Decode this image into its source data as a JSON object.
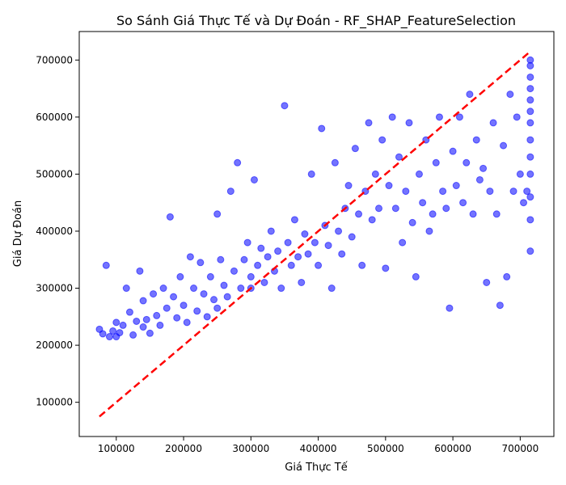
{
  "chart_data": {
    "type": "scatter",
    "title": "So Sánh Giá Thực Tế và Dự Đoán - RF_SHAP_FeatureSelection",
    "xlabel": "Giá Thực Tế",
    "ylabel": "Giá Dự Đoán",
    "xlim": [
      45000,
      750000
    ],
    "ylim": [
      40000,
      750000
    ],
    "xticks": [
      100000,
      200000,
      300000,
      400000,
      500000,
      600000,
      700000
    ],
    "yticks": [
      100000,
      200000,
      300000,
      400000,
      500000,
      600000,
      700000
    ],
    "xtick_labels": [
      "100000",
      "200000",
      "300000",
      "400000",
      "500000",
      "600000",
      "700000"
    ],
    "ytick_labels": [
      "100000",
      "200000",
      "300000",
      "400000",
      "500000",
      "600000",
      "700000"
    ],
    "grid": false,
    "colors": {
      "points": "#0000ff",
      "reference_line": "#ff0000"
    },
    "series": [
      {
        "kind": "scatter",
        "alpha": 0.55,
        "points": [
          [
            75000,
            228000
          ],
          [
            80000,
            220000
          ],
          [
            85000,
            340000
          ],
          [
            90000,
            215000
          ],
          [
            95000,
            225000
          ],
          [
            100000,
            240000
          ],
          [
            100000,
            215000
          ],
          [
            105000,
            222000
          ],
          [
            110000,
            235000
          ],
          [
            115000,
            300000
          ],
          [
            120000,
            258000
          ],
          [
            125000,
            218000
          ],
          [
            130000,
            242000
          ],
          [
            135000,
            330000
          ],
          [
            140000,
            278000
          ],
          [
            140000,
            232000
          ],
          [
            145000,
            245000
          ],
          [
            150000,
            221000
          ],
          [
            155000,
            290000
          ],
          [
            160000,
            252000
          ],
          [
            165000,
            235000
          ],
          [
            170000,
            300000
          ],
          [
            175000,
            265000
          ],
          [
            180000,
            425000
          ],
          [
            185000,
            285000
          ],
          [
            190000,
            248000
          ],
          [
            195000,
            320000
          ],
          [
            200000,
            270000
          ],
          [
            205000,
            240000
          ],
          [
            210000,
            355000
          ],
          [
            215000,
            300000
          ],
          [
            220000,
            260000
          ],
          [
            225000,
            345000
          ],
          [
            230000,
            290000
          ],
          [
            235000,
            250000
          ],
          [
            240000,
            320000
          ],
          [
            245000,
            280000
          ],
          [
            250000,
            430000
          ],
          [
            250000,
            265000
          ],
          [
            255000,
            350000
          ],
          [
            260000,
            305000
          ],
          [
            265000,
            285000
          ],
          [
            270000,
            470000
          ],
          [
            275000,
            330000
          ],
          [
            280000,
            520000
          ],
          [
            285000,
            300000
          ],
          [
            290000,
            350000
          ],
          [
            295000,
            380000
          ],
          [
            300000,
            320000
          ],
          [
            300000,
            300000
          ],
          [
            305000,
            490000
          ],
          [
            310000,
            340000
          ],
          [
            315000,
            370000
          ],
          [
            320000,
            310000
          ],
          [
            325000,
            355000
          ],
          [
            330000,
            400000
          ],
          [
            335000,
            330000
          ],
          [
            340000,
            365000
          ],
          [
            345000,
            300000
          ],
          [
            350000,
            620000
          ],
          [
            355000,
            380000
          ],
          [
            360000,
            340000
          ],
          [
            365000,
            420000
          ],
          [
            370000,
            355000
          ],
          [
            375000,
            310000
          ],
          [
            380000,
            395000
          ],
          [
            385000,
            360000
          ],
          [
            390000,
            500000
          ],
          [
            395000,
            380000
          ],
          [
            400000,
            340000
          ],
          [
            405000,
            580000
          ],
          [
            410000,
            410000
          ],
          [
            415000,
            375000
          ],
          [
            420000,
            300000
          ],
          [
            425000,
            520000
          ],
          [
            430000,
            400000
          ],
          [
            435000,
            360000
          ],
          [
            440000,
            440000
          ],
          [
            445000,
            480000
          ],
          [
            450000,
            390000
          ],
          [
            455000,
            545000
          ],
          [
            460000,
            430000
          ],
          [
            465000,
            340000
          ],
          [
            470000,
            470000
          ],
          [
            475000,
            590000
          ],
          [
            480000,
            420000
          ],
          [
            485000,
            500000
          ],
          [
            490000,
            440000
          ],
          [
            495000,
            560000
          ],
          [
            500000,
            335000
          ],
          [
            505000,
            480000
          ],
          [
            510000,
            600000
          ],
          [
            515000,
            440000
          ],
          [
            520000,
            530000
          ],
          [
            525000,
            380000
          ],
          [
            530000,
            470000
          ],
          [
            535000,
            590000
          ],
          [
            540000,
            415000
          ],
          [
            545000,
            320000
          ],
          [
            550000,
            500000
          ],
          [
            555000,
            450000
          ],
          [
            560000,
            560000
          ],
          [
            565000,
            400000
          ],
          [
            570000,
            430000
          ],
          [
            575000,
            520000
          ],
          [
            580000,
            600000
          ],
          [
            585000,
            470000
          ],
          [
            590000,
            440000
          ],
          [
            595000,
            265000
          ],
          [
            600000,
            540000
          ],
          [
            605000,
            480000
          ],
          [
            610000,
            600000
          ],
          [
            615000,
            450000
          ],
          [
            620000,
            520000
          ],
          [
            625000,
            640000
          ],
          [
            630000,
            430000
          ],
          [
            635000,
            560000
          ],
          [
            640000,
            490000
          ],
          [
            645000,
            510000
          ],
          [
            650000,
            310000
          ],
          [
            655000,
            470000
          ],
          [
            660000,
            590000
          ],
          [
            665000,
            430000
          ],
          [
            670000,
            270000
          ],
          [
            675000,
            550000
          ],
          [
            680000,
            320000
          ],
          [
            685000,
            640000
          ],
          [
            690000,
            470000
          ],
          [
            695000,
            600000
          ],
          [
            700000,
            500000
          ],
          [
            705000,
            450000
          ],
          [
            710000,
            470000
          ],
          [
            715000,
            365000
          ],
          [
            715000,
            420000
          ],
          [
            715000,
            460000
          ],
          [
            715000,
            500000
          ],
          [
            715000,
            530000
          ],
          [
            715000,
            560000
          ],
          [
            715000,
            590000
          ],
          [
            715000,
            610000
          ],
          [
            715000,
            630000
          ],
          [
            715000,
            650000
          ],
          [
            715000,
            670000
          ],
          [
            715000,
            690000
          ],
          [
            715000,
            700000
          ]
        ]
      },
      {
        "kind": "reference_line",
        "style": "dashed",
        "points": [
          [
            75000,
            75000
          ],
          [
            715000,
            715000
          ]
        ]
      }
    ]
  }
}
